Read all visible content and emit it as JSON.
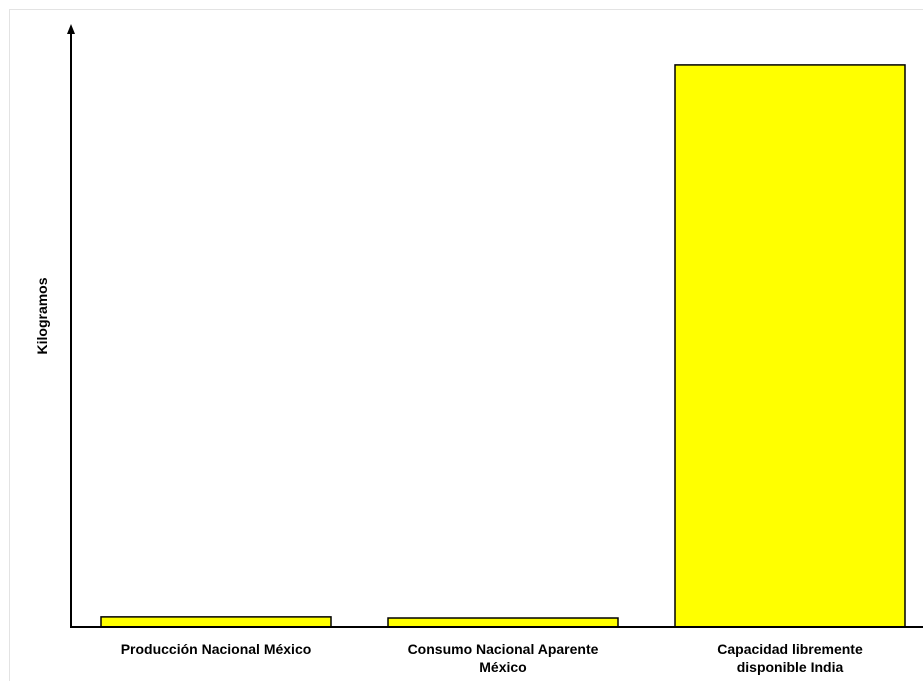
{
  "chart_data": {
    "type": "bar",
    "title": "",
    "xlabel": "",
    "ylabel": "Kilogramos",
    "categories": [
      [
        "Producción Nacional México"
      ],
      [
        "Consumo Nacional Aparente",
        "México"
      ],
      [
        "Capacidad libremente",
        "disponible India"
      ]
    ],
    "values": [
      1.8,
      1.6,
      100
    ],
    "ylim": [
      0,
      105.5
    ],
    "grid": false,
    "legend": "none",
    "colors": {
      "bar_fill": "#ffff00",
      "bar_stroke": "#000000",
      "axis": "#000000"
    }
  }
}
